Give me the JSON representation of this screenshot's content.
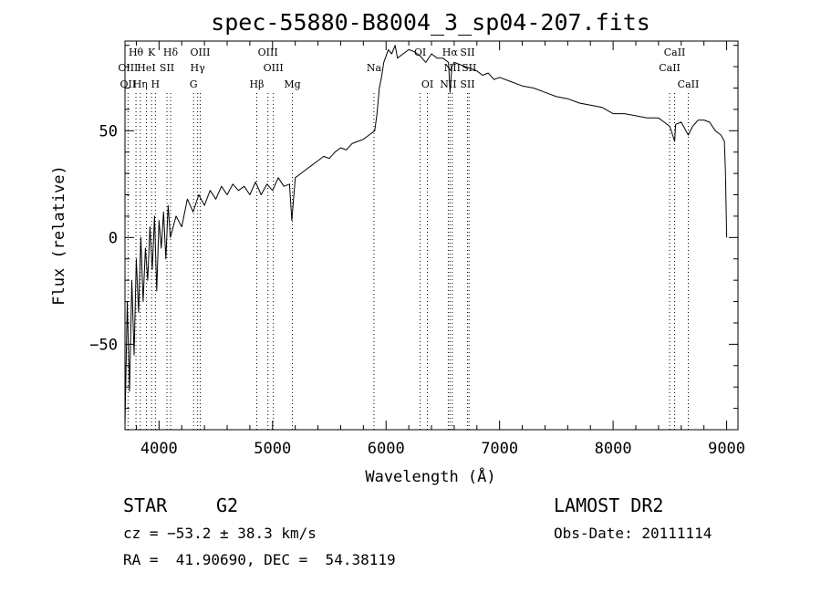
{
  "chart_data": {
    "type": "line",
    "title": "spec-55880-B8004_3_sp04-207.fits",
    "xlabel": "Wavelength (Å)",
    "ylabel": "Flux (relative)",
    "xlim": [
      3700,
      9100
    ],
    "ylim": [
      -90,
      92
    ],
    "xticks": [
      4000,
      5000,
      6000,
      7000,
      8000,
      9000
    ],
    "yticks": [
      -50,
      0,
      50
    ],
    "grid": false,
    "series": [
      {
        "x": [
          3700,
          3720,
          3740,
          3760,
          3780,
          3800,
          3820,
          3840,
          3860,
          3880,
          3900,
          3920,
          3940,
          3960,
          3980,
          4000,
          4020,
          4040,
          4060,
          4080,
          4100,
          4150,
          4200,
          4250,
          4300,
          4350,
          4400,
          4450,
          4500,
          4550,
          4600,
          4650,
          4700,
          4750,
          4800,
          4850,
          4900,
          4950,
          5000,
          5050,
          5100,
          5150,
          5170,
          5200,
          5250,
          5300,
          5350,
          5400,
          5450,
          5500,
          5550,
          5600,
          5650,
          5700,
          5750,
          5800,
          5850,
          5900,
          5920,
          5940,
          5960,
          5980,
          6000,
          6020,
          6050,
          6080,
          6100,
          6150,
          6200,
          6250,
          6300,
          6350,
          6400,
          6450,
          6500,
          6550,
          6563,
          6580,
          6600,
          6650,
          6700,
          6750,
          6800,
          6850,
          6900,
          6950,
          7000,
          7100,
          7200,
          7300,
          7400,
          7500,
          7600,
          7700,
          7800,
          7900,
          8000,
          8100,
          8200,
          8300,
          8400,
          8450,
          8500,
          8542,
          8550,
          8600,
          8662,
          8700,
          8750,
          8800,
          8850,
          8900,
          8950,
          8980,
          8990,
          9000
        ],
        "y": [
          -88,
          -30,
          -72,
          -20,
          -55,
          -10,
          -35,
          0,
          -30,
          -5,
          -20,
          5,
          -15,
          10,
          -25,
          8,
          -5,
          12,
          -10,
          15,
          0,
          10,
          5,
          18,
          12,
          20,
          15,
          22,
          18,
          24,
          20,
          25,
          22,
          24,
          20,
          26,
          20,
          25,
          22,
          28,
          24,
          25,
          8,
          28,
          30,
          32,
          34,
          36,
          38,
          37,
          40,
          42,
          41,
          44,
          45,
          46,
          48,
          50,
          58,
          70,
          75,
          82,
          85,
          88,
          86,
          90,
          84,
          86,
          88,
          87,
          85,
          82,
          86,
          84,
          84,
          82,
          68,
          80,
          82,
          81,
          80,
          79,
          78,
          76,
          77,
          74,
          75,
          73,
          71,
          70,
          68,
          66,
          65,
          63,
          62,
          61,
          58,
          58,
          57,
          56,
          56,
          54,
          52,
          45,
          53,
          54,
          48,
          52,
          55,
          55,
          54,
          50,
          48,
          45,
          30,
          0
        ]
      }
    ],
    "spectral_lines": [
      {
        "label": "Hθ",
        "x": 3797,
        "row": 0
      },
      {
        "label": "K",
        "x": 3934,
        "row": 0
      },
      {
        "label": "Hδ",
        "x": 4102,
        "row": 0
      },
      {
        "label": "OIII",
        "x": 4363,
        "row": 0
      },
      {
        "label": "OIII",
        "x": 4959,
        "row": 0
      },
      {
        "label": "OI",
        "x": 6300,
        "row": 0
      },
      {
        "label": "Hα",
        "x": 6563,
        "row": 0
      },
      {
        "label": "SII",
        "x": 6717,
        "row": 0
      },
      {
        "label": "CaII",
        "x": 8542,
        "row": 0
      },
      {
        "label": "OIII",
        "x": 3727,
        "row": 1
      },
      {
        "label": "HeI",
        "x": 3889,
        "row": 1
      },
      {
        "label": "SII",
        "x": 4070,
        "row": 1
      },
      {
        "label": "Hγ",
        "x": 4340,
        "row": 1
      },
      {
        "label": "OIII",
        "x": 5007,
        "row": 1
      },
      {
        "label": "Na",
        "x": 5893,
        "row": 1
      },
      {
        "label": "NII",
        "x": 6583,
        "row": 1
      },
      {
        "label": "SII",
        "x": 6731,
        "row": 1
      },
      {
        "label": "CaII",
        "x": 8498,
        "row": 1
      },
      {
        "label": "OII",
        "x": 3727,
        "row": 2
      },
      {
        "label": "Hη",
        "x": 3835,
        "row": 2
      },
      {
        "label": "H",
        "x": 3968,
        "row": 2
      },
      {
        "label": "G",
        "x": 4304,
        "row": 2
      },
      {
        "label": "Hβ",
        "x": 4861,
        "row": 2
      },
      {
        "label": "Mg",
        "x": 5175,
        "row": 2
      },
      {
        "label": "OI",
        "x": 6364,
        "row": 2
      },
      {
        "label": "NII",
        "x": 6548,
        "row": 2
      },
      {
        "label": "SII",
        "x": 6717,
        "row": 2
      },
      {
        "label": "CaII",
        "x": 8662,
        "row": 2
      }
    ]
  },
  "info": {
    "class_label": "STAR",
    "subclass_label": "G2",
    "survey": "LAMOST DR2",
    "cz": "cz = −53.2 ± 38.3 km/s",
    "obs_date": "Obs-Date: 20111114",
    "radec": "RA =  41.90690, DEC =  54.38119"
  }
}
